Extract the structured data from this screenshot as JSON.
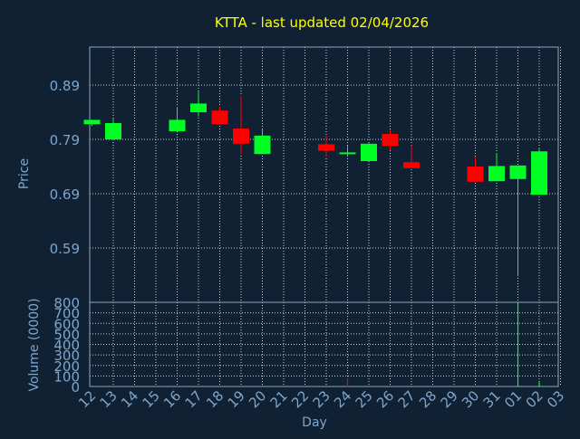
{
  "title": "KTTA - last updated 02/04/2026",
  "colors": {
    "background": "#0f2133",
    "plot_border": "#8fa6bf",
    "grid": "#c8d2dc",
    "label": "#7ea6cc",
    "title": "#ffff00",
    "up": "#00ff22",
    "down": "#ff0000"
  },
  "chart_data": [
    {
      "type": "candlestick",
      "ylabel": "Price",
      "ylim": [
        0.49,
        0.96
      ],
      "yticks": [
        0.59,
        0.69,
        0.79,
        0.89
      ],
      "ytick_labels": [
        "0.59",
        "0.69",
        "0.79",
        "0.89"
      ],
      "grid": true,
      "candles": [
        {
          "day": "12",
          "open": 0.818,
          "high": 0.826,
          "low": 0.815,
          "close": 0.826
        },
        {
          "day": "13",
          "open": 0.79,
          "high": 0.828,
          "low": 0.788,
          "close": 0.82
        },
        {
          "day": "16",
          "open": 0.805,
          "high": 0.85,
          "low": 0.805,
          "close": 0.826
        },
        {
          "day": "17",
          "open": 0.84,
          "high": 0.878,
          "low": 0.832,
          "close": 0.856
        },
        {
          "day": "18",
          "open": 0.843,
          "high": 0.85,
          "low": 0.818,
          "close": 0.818
        },
        {
          "day": "19",
          "open": 0.81,
          "high": 0.87,
          "low": 0.762,
          "close": 0.782
        },
        {
          "day": "20",
          "open": 0.763,
          "high": 0.808,
          "low": 0.763,
          "close": 0.797
        },
        {
          "day": "23",
          "open": 0.781,
          "high": 0.797,
          "low": 0.758,
          "close": 0.769
        },
        {
          "day": "24",
          "open": 0.766,
          "high": 0.778,
          "low": 0.758,
          "close": 0.766
        },
        {
          "day": "25",
          "open": 0.75,
          "high": 0.783,
          "low": 0.75,
          "close": 0.782
        },
        {
          "day": "26",
          "open": 0.8,
          "high": 0.808,
          "low": 0.77,
          "close": 0.778
        },
        {
          "day": "27",
          "open": 0.748,
          "high": 0.779,
          "low": 0.737,
          "close": 0.737
        },
        {
          "day": "30",
          "open": 0.74,
          "high": 0.757,
          "low": 0.712,
          "close": 0.712
        },
        {
          "day": "31",
          "open": 0.713,
          "high": 0.765,
          "low": 0.713,
          "close": 0.741
        },
        {
          "day": "01",
          "open": 0.717,
          "high": 0.74,
          "low": 0.538,
          "close": 0.742
        },
        {
          "day": "02",
          "open": 0.688,
          "high": 0.775,
          "low": 0.688,
          "close": 0.768
        }
      ]
    },
    {
      "type": "bar",
      "ylabel": "Volume (0000)",
      "ylim": [
        0,
        800
      ],
      "yticks": [
        0,
        100,
        200,
        300,
        400,
        500,
        600,
        700,
        800
      ],
      "ytick_labels": [
        "0",
        "100",
        "200",
        "300",
        "400",
        "500",
        "600",
        "700",
        "800"
      ],
      "xlabel": "Day",
      "xtick_labels": [
        "12",
        "13",
        "14",
        "15",
        "16",
        "17",
        "18",
        "19",
        "20",
        "21",
        "22",
        "23",
        "24",
        "25",
        "26",
        "27",
        "28",
        "29",
        "30",
        "31",
        "01",
        "02",
        "03"
      ],
      "grid": true,
      "volumes": [
        {
          "day": "12",
          "value": 0
        },
        {
          "day": "13",
          "value": 0
        },
        {
          "day": "16",
          "value": 0
        },
        {
          "day": "17",
          "value": 0
        },
        {
          "day": "18",
          "value": 0
        },
        {
          "day": "19",
          "value": 0
        },
        {
          "day": "20",
          "value": 6,
          "direction": "up"
        },
        {
          "day": "23",
          "value": 0
        },
        {
          "day": "24",
          "value": 80,
          "direction": "down"
        },
        {
          "day": "25",
          "value": 0
        },
        {
          "day": "26",
          "value": 0
        },
        {
          "day": "27",
          "value": 0
        },
        {
          "day": "30",
          "value": 0
        },
        {
          "day": "31",
          "value": 0
        },
        {
          "day": "01",
          "value": 800,
          "direction": "up"
        },
        {
          "day": "02",
          "value": 40,
          "direction": "up"
        }
      ]
    }
  ]
}
